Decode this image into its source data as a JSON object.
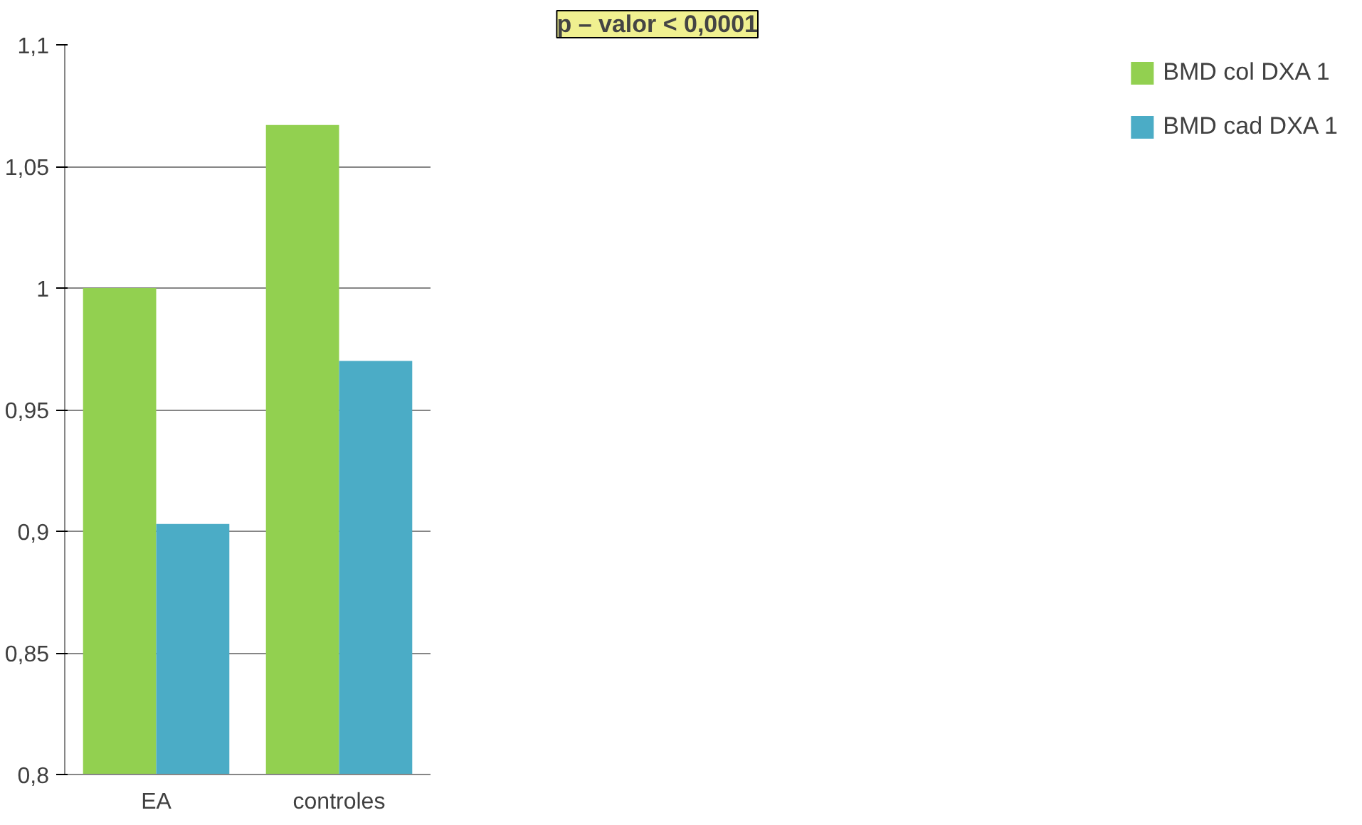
{
  "chart_data": {
    "type": "bar",
    "categories": [
      "EA",
      "controles"
    ],
    "series": [
      {
        "name": "BMD col DXA 1",
        "color": "#92d050",
        "values": [
          1.0,
          1.067
        ]
      },
      {
        "name": "BMD cad DXA 1",
        "color": "#4bacc6",
        "values": [
          0.903,
          0.97
        ]
      }
    ],
    "ylim": [
      0.8,
      1.1
    ],
    "yticks": [
      {
        "value": 0.8,
        "label": "0,8"
      },
      {
        "value": 0.85,
        "label": "0,85"
      },
      {
        "value": 0.9,
        "label": "0,9"
      },
      {
        "value": 0.95,
        "label": "0,95"
      },
      {
        "value": 1,
        "label": "1"
      },
      {
        "value": 1.05,
        "label": "1,05"
      },
      {
        "value": 1.1,
        "label": "1,1"
      }
    ],
    "grid": "y",
    "legend": "right",
    "annotations": [
      "p – valor < 0,0001"
    ]
  }
}
